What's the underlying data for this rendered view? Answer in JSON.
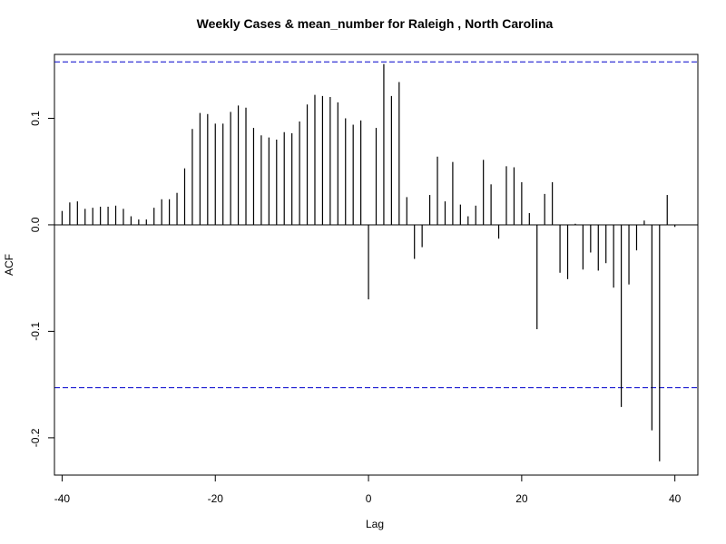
{
  "chart_data": {
    "type": "bar",
    "title": "Weekly Cases & mean_number for Raleigh , North Carolina",
    "xlabel": "Lag",
    "ylabel": "ACF",
    "xlim": [
      -41,
      43
    ],
    "ylim": [
      -0.235,
      0.16
    ],
    "x_ticks": [
      -40,
      -20,
      0,
      20,
      40
    ],
    "x_tick_labels": [
      "-40",
      "-20",
      "0",
      "20",
      "40"
    ],
    "y_ticks": [
      -0.2,
      -0.1,
      0.0,
      0.1
    ],
    "y_tick_labels": [
      "-0.2",
      "-0.1",
      "0.0",
      "0.1"
    ],
    "confidence_bound": 0.153,
    "colors": {
      "bars": "#000000",
      "confidence": "#0000cc",
      "zero_line": "#000000"
    },
    "lags": [
      -40,
      -39,
      -38,
      -37,
      -36,
      -35,
      -34,
      -33,
      -32,
      -31,
      -30,
      -29,
      -28,
      -27,
      -26,
      -25,
      -24,
      -23,
      -22,
      -21,
      -20,
      -19,
      -18,
      -17,
      -16,
      -15,
      -14,
      -13,
      -12,
      -11,
      -10,
      -9,
      -8,
      -7,
      -6,
      -5,
      -4,
      -3,
      -2,
      -1,
      0,
      1,
      2,
      3,
      4,
      5,
      6,
      7,
      8,
      9,
      10,
      11,
      12,
      13,
      14,
      15,
      16,
      17,
      18,
      19,
      20,
      21,
      22,
      23,
      24,
      25,
      26,
      27,
      28,
      29,
      30,
      31,
      32,
      33,
      34,
      35,
      36,
      37,
      38,
      39,
      40
    ],
    "values": [
      0.013,
      0.021,
      0.022,
      0.015,
      0.016,
      0.017,
      0.017,
      0.018,
      0.015,
      0.008,
      0.005,
      0.005,
      0.016,
      0.024,
      0.024,
      0.03,
      0.053,
      0.09,
      0.105,
      0.104,
      0.095,
      0.095,
      0.106,
      0.112,
      0.11,
      0.091,
      0.084,
      0.082,
      0.08,
      0.087,
      0.086,
      0.097,
      0.113,
      0.122,
      0.121,
      0.12,
      0.115,
      0.1,
      0.094,
      0.098,
      -0.07,
      0.091,
      0.151,
      0.121,
      0.134,
      0.026,
      -0.032,
      -0.021,
      0.028,
      0.064,
      0.022,
      0.059,
      0.019,
      0.008,
      0.018,
      0.061,
      0.038,
      -0.013,
      0.055,
      0.054,
      0.04,
      0.011,
      -0.098,
      0.029,
      0.04,
      -0.045,
      -0.051,
      0.001,
      -0.042,
      -0.026,
      -0.043,
      -0.036,
      -0.059,
      -0.171,
      -0.056,
      -0.024,
      0.004,
      -0.193,
      -0.222,
      0.028,
      -0.002
    ]
  }
}
